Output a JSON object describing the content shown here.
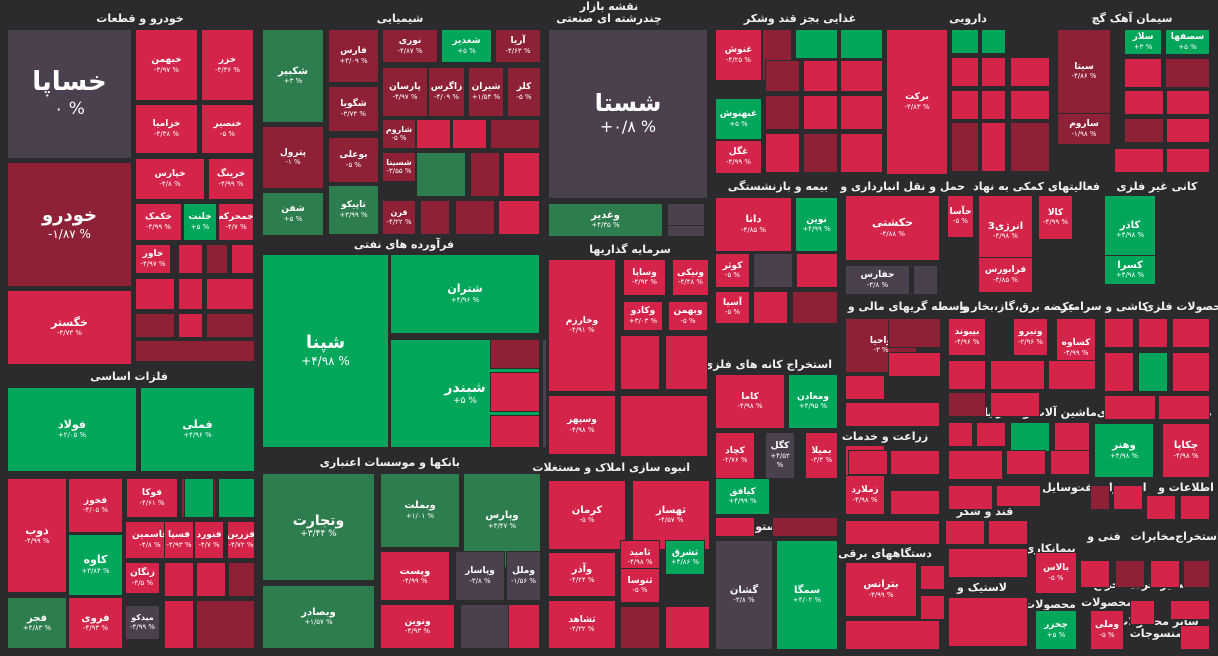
{
  "map_title": "نقشه بازار",
  "map_subtitle": "چندرشته ای صنعتی",
  "colors": {
    "red": "#d4244a",
    "dark_red": "#8e2136",
    "dark_gray": "#4a404e",
    "green": "#00a65a",
    "dark_green": "#2e7d4f",
    "bg": "#2b2b2d"
  },
  "sectors": [
    {
      "name": "خودرو و قطعات"
    },
    {
      "name": "شیمیایی"
    },
    {
      "name": "غذایی بجز قند وشکر"
    },
    {
      "name": "دارویی"
    },
    {
      "name": "سیمان آهک گچ"
    },
    {
      "name": "فرآورده های نفتی"
    },
    {
      "name": "سرمایه گذاریها"
    },
    {
      "name": "بیمه و بازنشستگی"
    },
    {
      "name": "حمل و نقل انبارداری و"
    },
    {
      "name": "فعالیتهای کمکی به نهاد"
    },
    {
      "name": "کانی غیر فلزی"
    },
    {
      "name": "واسطه گریهای مالی و"
    },
    {
      "name": "عرضه برق،گاز،بخار و"
    },
    {
      "name": "کاشی و سرامیک"
    },
    {
      "name": "محصولات فلزی"
    },
    {
      "name": "فلزات اساسی"
    },
    {
      "name": "استخراج کانه های فلزی"
    },
    {
      "name": "رایانه"
    },
    {
      "name": "ماشین آلات و"
    },
    {
      "name": "فعالیتهای"
    },
    {
      "name": "محصولات"
    },
    {
      "name": "زراعت و خدمات"
    },
    {
      "name": "بانکها و موسسات اعتباری"
    },
    {
      "name": "انبوه سازی املاک و مستغلات"
    },
    {
      "name": "وسایل"
    },
    {
      "name": "استخراج نفت"
    },
    {
      "name": "اطلاعات و"
    },
    {
      "name": "قند و شکر"
    },
    {
      "name": "هتل و رستوران"
    },
    {
      "name": "دستگاههای برقی"
    },
    {
      "name": "بیمانکاری"
    },
    {
      "name": "فنی و"
    },
    {
      "name": "مخابرات"
    },
    {
      "name": "استخراج"
    },
    {
      "name": "لاستیک و"
    },
    {
      "name": "محصولات"
    },
    {
      "name": "محصولات"
    },
    {
      "name": "سایر خرده"
    },
    {
      "name": "استخراج"
    },
    {
      "name": "ساير محصولات"
    },
    {
      "name": "منسوجات"
    },
    {
      "name": "چاپ"
    }
  ],
  "tiles": [
    {
      "name": "خساپا",
      "change": "۰ %"
    },
    {
      "name": "خودرو",
      "change": "-۱/۸۷ %"
    },
    {
      "name": "خگستر",
      "change": "-۴/۷۳ %"
    },
    {
      "name": "خبهمن",
      "change": "-۴/۹۷ %"
    },
    {
      "name": "خزر",
      "change": "-۴/۳۶ %"
    },
    {
      "name": "خزامیا",
      "change": "-۴/۳۸ %"
    },
    {
      "name": "خنصیر",
      "change": "-۵ %"
    },
    {
      "name": "خپارس",
      "change": "-۴/۸ %"
    },
    {
      "name": "خرینگ",
      "change": "-۴/۹۹ %"
    },
    {
      "name": "خکمک",
      "change": "-۴/۹۹ %"
    },
    {
      "name": "خلنت",
      "change": "+۵ %"
    },
    {
      "name": "خمحرکه",
      "change": "-۴/۷ %"
    },
    {
      "name": "خاور",
      "change": "-۴/۹۷ %"
    },
    {
      "name": "شکبیر",
      "change": "+۳ %"
    },
    {
      "name": "پترول",
      "change": "-۱ %"
    },
    {
      "name": "شفن",
      "change": "+۵ %"
    },
    {
      "name": "فارس",
      "change": "+۳/۰۹ %"
    },
    {
      "name": "شگویا",
      "change": "-۳/۷۴ %"
    },
    {
      "name": "بوعلی",
      "change": "-۵ %"
    },
    {
      "name": "تاپیکو",
      "change": "+۳/۹۹ %"
    },
    {
      "name": "نوری",
      "change": "-۴/۸۷ %"
    },
    {
      "name": "شغدیر",
      "change": "+۵ %"
    },
    {
      "name": "آریا",
      "change": "-۴/۶۳ %"
    },
    {
      "name": "پارسان",
      "change": "-۴/۹۷ %"
    },
    {
      "name": "زاگرس",
      "change": "-۴/۰۹ %"
    },
    {
      "name": "شیران",
      "change": "+۱/۵۴ %"
    },
    {
      "name": "کلر",
      "change": "-۵ %"
    },
    {
      "name": "شاروم",
      "change": "-۵ %"
    },
    {
      "name": "شسینا",
      "change": "-۳/۵۵ %"
    },
    {
      "name": "قرن",
      "change": "-۴/۲۲ %"
    },
    {
      "name": "شستا",
      "change": "+۰/۸ %"
    },
    {
      "name": "وغدیر",
      "change": "+۴/۳۵ %"
    },
    {
      "name": "غنوش",
      "change": "-۴/۲۵ %"
    },
    {
      "name": "غبهنوش",
      "change": "+۵ %"
    },
    {
      "name": "غگل",
      "change": "-۴/۹۹ %"
    },
    {
      "name": "برکت",
      "change": "-۴/۸۳ %"
    },
    {
      "name": "سیتا",
      "change": "-۴/۸۶ %"
    },
    {
      "name": "سلار",
      "change": "+۳ %"
    },
    {
      "name": "سصفها",
      "change": "+۵ %"
    },
    {
      "name": "ساروم",
      "change": "-۱/۹۸ %"
    },
    {
      "name": "شپنا",
      "change": "+۴/۹۸ %"
    },
    {
      "name": "شتران",
      "change": "+۴/۹۶ %"
    },
    {
      "name": "شبندر",
      "change": "+۵ %"
    },
    {
      "name": "فولاد",
      "change": "+۲/۰۵ %"
    },
    {
      "name": "فملی",
      "change": "+۴/۹۶ %"
    },
    {
      "name": "ذوب",
      "change": "-۴/۹۹ %"
    },
    {
      "name": "فخوز",
      "change": "-۴/۰۵ %"
    },
    {
      "name": "فوکا",
      "change": "-۴/۶۱ %"
    },
    {
      "name": "فرآور",
      "change": "+۵ %"
    },
    {
      "name": "کاوه",
      "change": "+۳/۸۴ %"
    },
    {
      "name": "فاسمین",
      "change": "-۴/۸ %"
    },
    {
      "name": "فسپا",
      "change": "-۴/۹۳ %"
    },
    {
      "name": "فنورد",
      "change": "-۴/۷ %"
    },
    {
      "name": "فزرین",
      "change": "-۴/۷۲ %"
    },
    {
      "name": "زنگان",
      "change": "-۴/۵ %"
    },
    {
      "name": "فجر",
      "change": "+۴/۸۳ %"
    },
    {
      "name": "فروی",
      "change": "-۴/۹۳ %"
    },
    {
      "name": "میدکو",
      "change": "-۴/۹۹ %"
    },
    {
      "name": "وتجارت",
      "change": "+۳/۴۴ %"
    },
    {
      "name": "وبصادر",
      "change": "+۱/۵۷ %"
    },
    {
      "name": "وبملت",
      "change": "+۱/۰۱ %"
    },
    {
      "name": "وپارس",
      "change": "+۳/۴۷ %"
    },
    {
      "name": "وپست",
      "change": "-۴/۹۹ %"
    },
    {
      "name": "وپاسار",
      "change": "-۳/۸ %"
    },
    {
      "name": "وملل",
      "change": "-۱/۵۶ %"
    },
    {
      "name": "ونوین",
      "change": "-۴/۹۳ %"
    },
    {
      "name": "ونیکی",
      "change": "-۴/۴۸ %"
    },
    {
      "name": "وساپا",
      "change": "-۴/۹۲ %"
    },
    {
      "name": "وخارزم",
      "change": "-۴/۹۱ %"
    },
    {
      "name": "وکادو",
      "change": "+۳/۰۳ %"
    },
    {
      "name": "وبهمن",
      "change": "-۵ %"
    },
    {
      "name": "وسپهر",
      "change": "-۴/۹۸ %"
    },
    {
      "name": "دانا",
      "change": "-۴/۸۵ %"
    },
    {
      "name": "نوین",
      "change": "+۴/۹۹ %"
    },
    {
      "name": "کوثر",
      "change": "-۵ %"
    },
    {
      "name": "آسیا",
      "change": "-۵ %"
    },
    {
      "name": "حکشتی",
      "change": "-۴/۸۸ %"
    },
    {
      "name": "حفارس",
      "change": "-۳/۸ %"
    },
    {
      "name": "حآسا",
      "change": "-۵ %"
    },
    {
      "name": "انرژی3",
      "change": "-۴/۹۸ %"
    },
    {
      "name": "فرابورس",
      "change": "-۴/۸۵ %"
    },
    {
      "name": "کالا",
      "change": "-۴/۹۹ %"
    },
    {
      "name": "کاذر",
      "change": "+۴/۹۸ %"
    },
    {
      "name": "کسرا",
      "change": "+۴/۹۸ %"
    },
    {
      "name": "واحیا",
      "change": "-۳ %"
    },
    {
      "name": "بپیوند",
      "change": "-۴/۹۶ %"
    },
    {
      "name": "ونیرو",
      "change": "-۲/۹۶ %"
    },
    {
      "name": "کساوه",
      "change": "-۴/۹۹ %"
    },
    {
      "name": "کاما",
      "change": "-۴/۹۸ %"
    },
    {
      "name": "ومعادن",
      "change": "+۴/۹۵ %"
    },
    {
      "name": "کچاد",
      "change": "-۲/۷۶ %"
    },
    {
      "name": "کگل",
      "change": "+۴/۵۲ %"
    },
    {
      "name": "بمیلا",
      "change": "-۳/۴ %"
    },
    {
      "name": "کیافق",
      "change": "+۴/۹۹ %"
    },
    {
      "name": "زمگسا",
      "change": "-۴/۹۹ %"
    },
    {
      "name": "زملارد",
      "change": "-۴/۹۸ %"
    },
    {
      "name": "وهنر",
      "change": "+۴/۹۸ %"
    },
    {
      "name": "چکاپا",
      "change": "-۴/۹۸ %"
    },
    {
      "name": "کرمان",
      "change": "-۵ %"
    },
    {
      "name": "ثهساز",
      "change": "-۴/۵۷ %"
    },
    {
      "name": "وآذر",
      "change": "-۴/۲۴ %"
    },
    {
      "name": "ثامید",
      "change": "-۴/۹۸ %"
    },
    {
      "name": "ثشرق",
      "change": "+۴/۸۶ %"
    },
    {
      "name": "ثنوسا",
      "change": "-۵ %"
    },
    {
      "name": "ثشاهد",
      "change": "-۴/۳۲ %"
    },
    {
      "name": "گشان",
      "change": "-۳/۸ %"
    },
    {
      "name": "سمگا",
      "change": "+۴/۰۲ %"
    },
    {
      "name": "بترانس",
      "change": "-۴/۹۹ %"
    },
    {
      "name": "بالاس",
      "change": "-۵ %"
    },
    {
      "name": "چخزر",
      "change": "+۵ %"
    },
    {
      "name": "وملی",
      "change": "-۵ %"
    }
  ]
}
